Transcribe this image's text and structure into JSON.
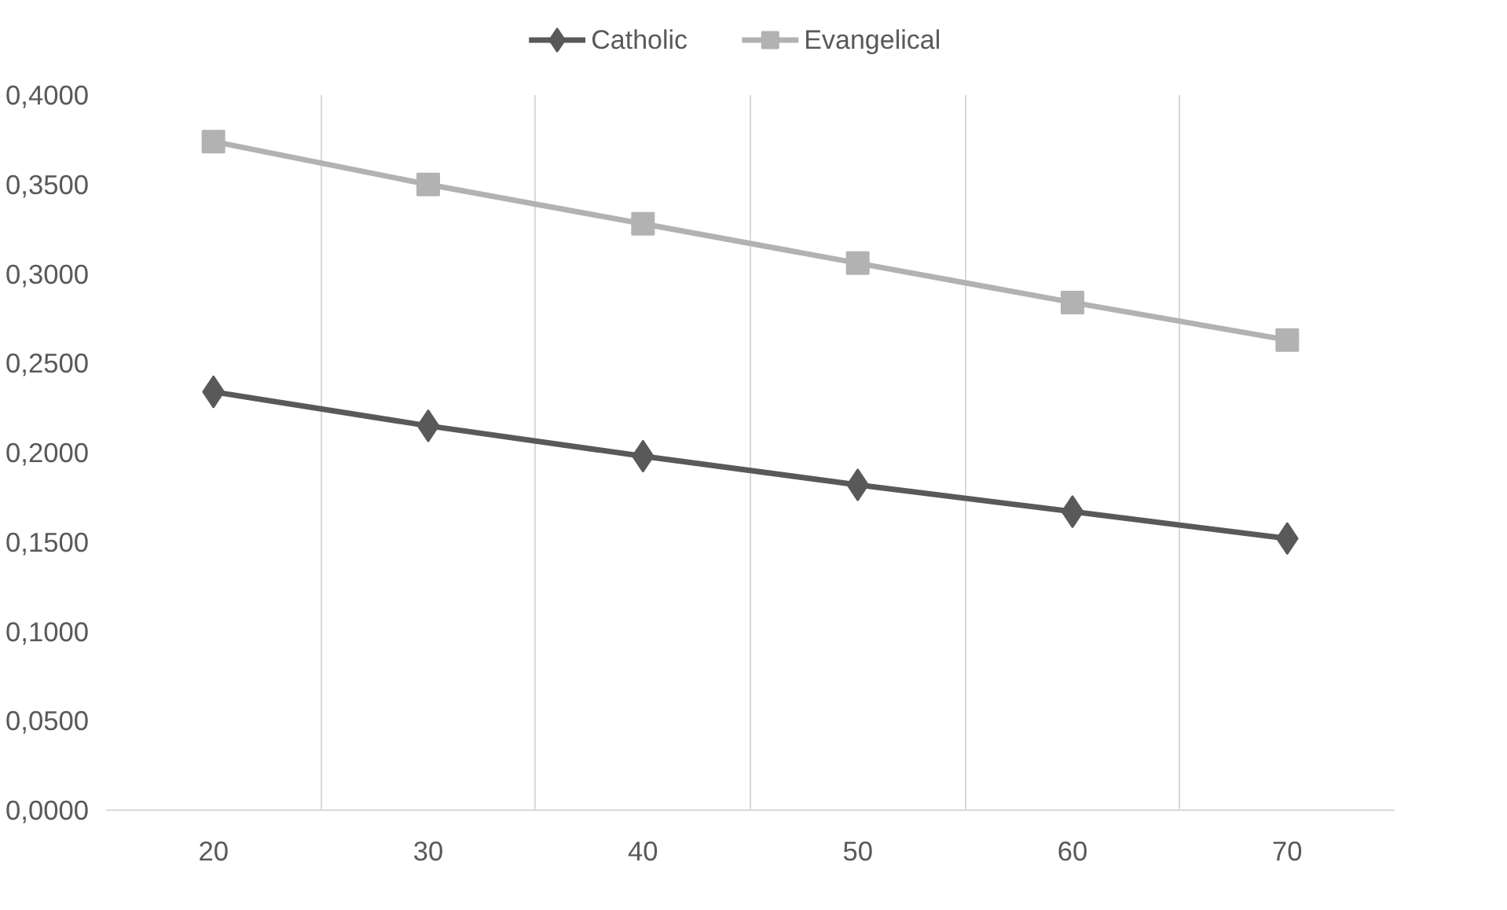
{
  "chart_data": {
    "type": "line",
    "categories": [
      "20",
      "30",
      "40",
      "50",
      "60",
      "70"
    ],
    "series": [
      {
        "name": "Catholic",
        "color": "#595959",
        "marker": "diamond",
        "values": [
          0.234,
          0.215,
          0.198,
          0.182,
          0.167,
          0.152
        ]
      },
      {
        "name": "Evangelical",
        "color": "#b2b2b2",
        "marker": "square",
        "values": [
          0.374,
          0.35,
          0.328,
          0.306,
          0.284,
          0.263
        ]
      }
    ],
    "ylim": [
      0,
      0.4
    ],
    "yticks": [
      {
        "value": 0,
        "label": "0,0000"
      },
      {
        "value": 0.05,
        "label": "0,0500"
      },
      {
        "value": 0.1,
        "label": "0,1000"
      },
      {
        "value": 0.15,
        "label": "0,1500"
      },
      {
        "value": 0.2,
        "label": "0,2000"
      },
      {
        "value": 0.25,
        "label": "0,2500"
      },
      {
        "value": 0.3,
        "label": "0,3000"
      },
      {
        "value": 0.35,
        "label": "0,3500"
      },
      {
        "value": 0.4,
        "label": "0,4000"
      }
    ],
    "grid": "x",
    "legend": "top",
    "line_style": "solid"
  }
}
